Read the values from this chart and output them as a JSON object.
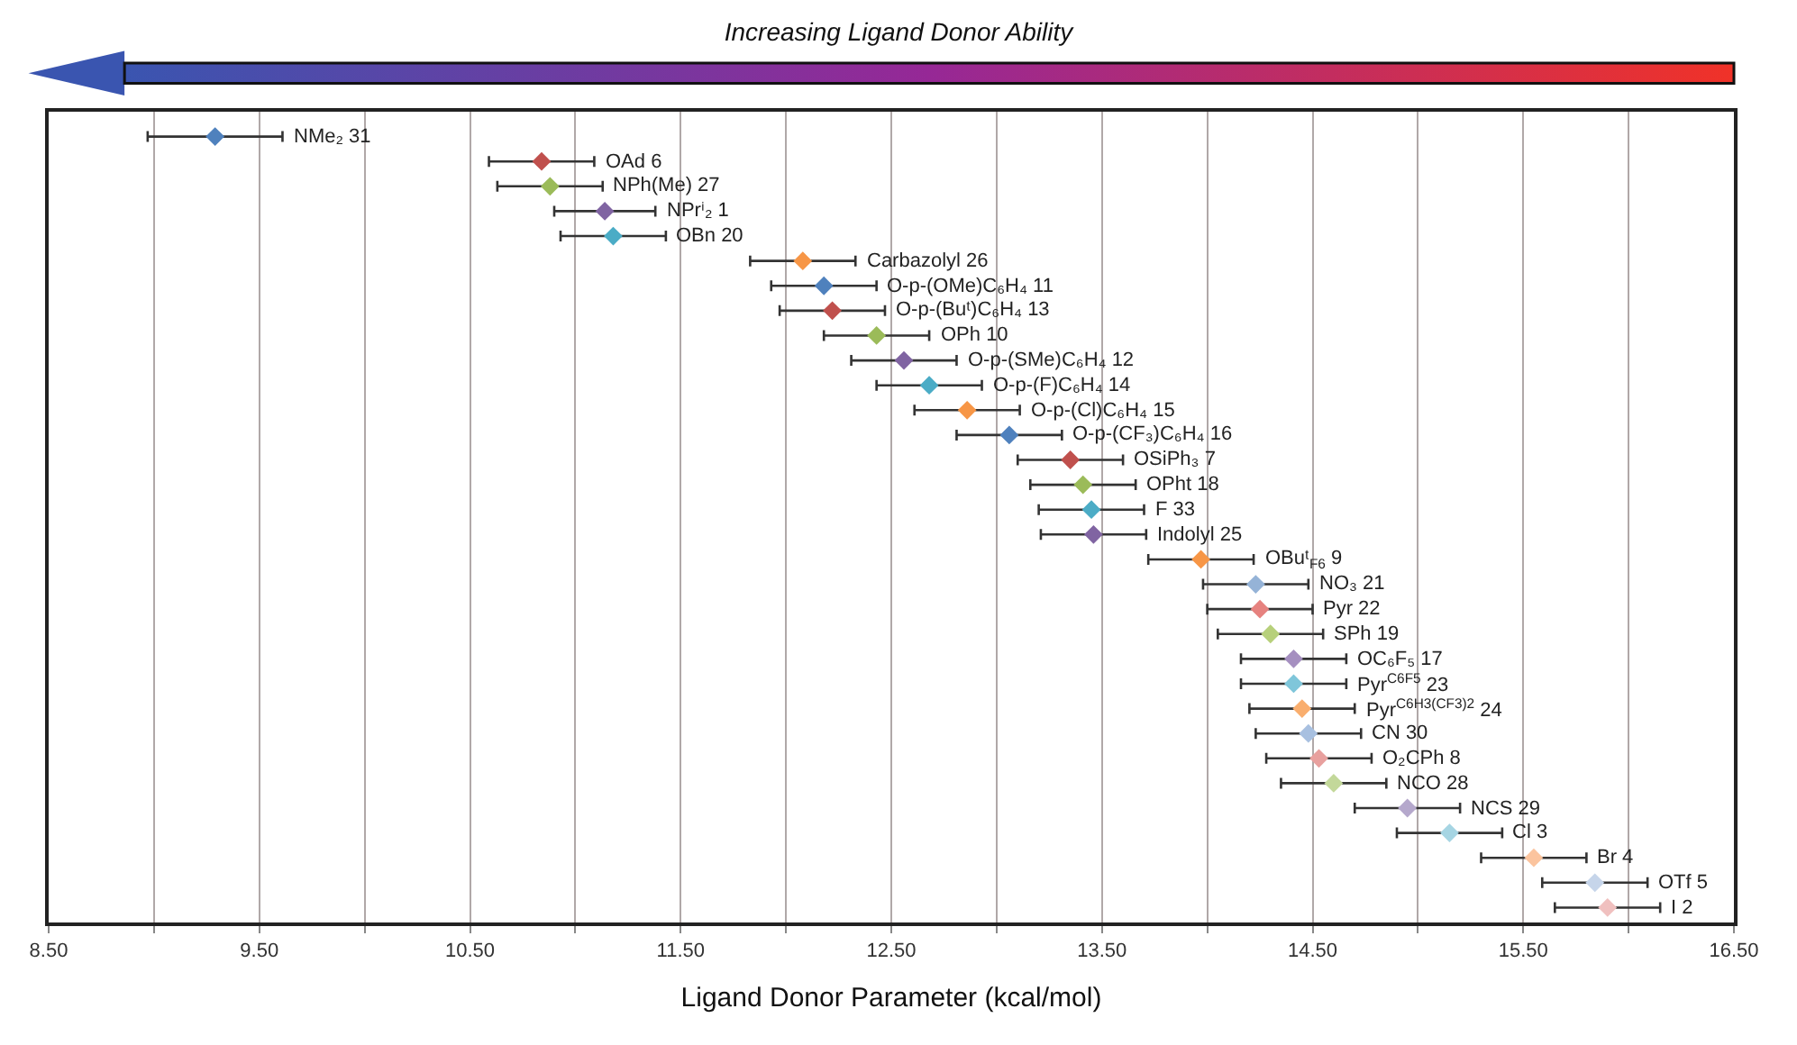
{
  "chart_data": {
    "type": "scatter",
    "title": "Increasing Ligand Donor Ability",
    "xlabel": "Ligand Donor Parameter (kcal/mol)",
    "categories": [
      "NMe₂ 31",
      "OAd 6",
      "NPh(Me) 27",
      "NPrⁱ₂ 1",
      "OBn 20",
      "Carbazolyl 26",
      "O-p-(OMe)C₆H₄ 11",
      "O-p-(Buᵗ)C₆H₄ 13",
      "OPh 10",
      "O-p-(SMe)C₆H₄ 12",
      "O-p-(F)C₆H₄ 14",
      "O-p-(Cl)C₆H₄ 15",
      "O-p-(CF₃)C₆H₄ 16",
      "OSiPh₃ 7",
      "OPht 18",
      "F 33",
      "Indolyl 25",
      "OBuᵗ$_{F6}$ 9",
      "NO₃ 21",
      "Pyr 22",
      "SPh 19",
      "OC₆F₅ 17",
      "Pyr$^{C6F5}$ 23",
      "Pyr$^{C6H3(CF3)2}$ 24",
      "CN 30",
      "O₂CPh 8",
      "NCO 28",
      "NCS 29",
      "Cl 3",
      "Br 4",
      "OTf 5",
      "I 2"
    ],
    "orientation": "horizontal",
    "values": [
      9.29,
      10.84,
      10.88,
      11.14,
      11.18,
      12.08,
      12.18,
      12.22,
      12.43,
      12.56,
      12.68,
      12.86,
      13.06,
      13.35,
      13.41,
      13.45,
      13.46,
      13.97,
      14.23,
      14.25,
      14.3,
      14.41,
      14.41,
      14.45,
      14.48,
      14.53,
      14.6,
      14.95,
      15.15,
      15.55,
      15.84,
      15.9
    ],
    "errors": [
      0.32,
      0.25,
      0.25,
      0.24,
      0.25,
      0.25,
      0.25,
      0.25,
      0.25,
      0.25,
      0.25,
      0.25,
      0.25,
      0.25,
      0.25,
      0.25,
      0.25,
      0.25,
      0.25,
      0.25,
      0.25,
      0.25,
      0.25,
      0.25,
      0.25,
      0.25,
      0.25,
      0.25,
      0.25,
      0.25,
      0.25,
      0.25
    ],
    "colors": [
      "#4f81bd",
      "#c0504d",
      "#9bbb59",
      "#8064a2",
      "#4bacc6",
      "#f79646",
      "#4f81bd",
      "#c0504d",
      "#9bbb59",
      "#8064a2",
      "#4bacc6",
      "#f79646",
      "#4f81bd",
      "#c0504d",
      "#9bbb59",
      "#4bacc6",
      "#8064a2",
      "#f79646",
      "#95b3d7",
      "#e6827f",
      "#b7d07b",
      "#a58fc0",
      "#7fc6da",
      "#f9ae6e",
      "#a8c0e0",
      "#e8a09e",
      "#c3d89a",
      "#b5a8cc",
      "#a6d5e3",
      "#fbc49e",
      "#c6d5ea",
      "#f0c0bf"
    ],
    "xlim": [
      8.5,
      16.5
    ],
    "xticks": [
      {
        "value": 8.5,
        "label": "8.50"
      },
      {
        "value": 9.0,
        "label": null
      },
      {
        "value": 9.5,
        "label": "9.50"
      },
      {
        "value": 10.0,
        "label": null
      },
      {
        "value": 10.5,
        "label": "10.50"
      },
      {
        "value": 11.0,
        "label": null
      },
      {
        "value": 11.5,
        "label": "11.50"
      },
      {
        "value": 12.0,
        "label": null
      },
      {
        "value": 12.5,
        "label": "12.50"
      },
      {
        "value": 13.0,
        "label": null
      },
      {
        "value": 13.5,
        "label": "13.50"
      },
      {
        "value": 14.0,
        "label": null
      },
      {
        "value": 14.5,
        "label": "14.50"
      },
      {
        "value": 15.0,
        "label": null
      },
      {
        "value": 15.5,
        "label": "15.50"
      },
      {
        "value": 16.0,
        "label": null
      },
      {
        "value": 16.5,
        "label": "16.50"
      }
    ],
    "grid": "x",
    "marker": "diamond",
    "tick_labels": "x",
    "data_labels": false
  }
}
